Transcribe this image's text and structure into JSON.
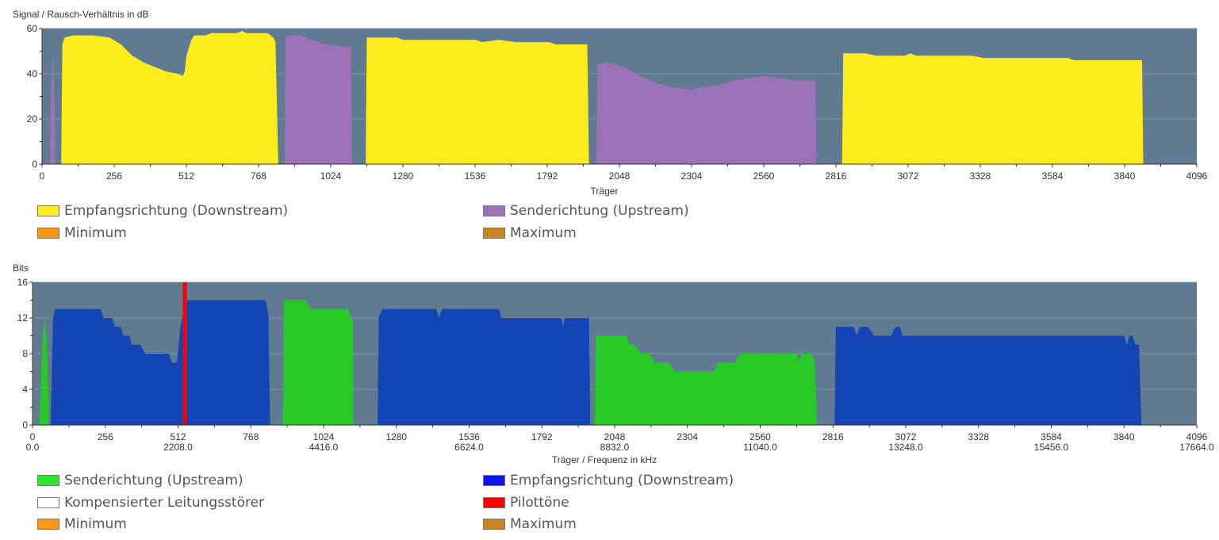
{
  "chart_data": [
    {
      "type": "area",
      "title": "Signal / Rausch-Verhältnis in dB",
      "xlabel": "Träger",
      "ylabel": "Signal / Rausch-Verhältnis in dB",
      "xlim": [
        0,
        4096
      ],
      "ylim": [
        0,
        60
      ],
      "x_ticks": [
        0,
        256,
        512,
        768,
        1024,
        1280,
        1536,
        1792,
        2048,
        2304,
        2560,
        2816,
        3072,
        3328,
        3584,
        3840,
        4096
      ],
      "y_ticks": [
        0,
        20,
        40,
        60
      ],
      "grid": true,
      "series": [
        {
          "name": "Senderichtung (Upstream)",
          "color": "#9b71b8",
          "segments": [
            [
              [
                28,
                0
              ],
              [
                32,
                35
              ],
              [
                40,
                49
              ],
              [
                44,
                30
              ],
              [
                48,
                0
              ]
            ],
            [
              [
                860,
                0
              ],
              [
                864,
                57
              ],
              [
                920,
                57
              ],
              [
                960,
                55
              ],
              [
                1000,
                53
              ],
              [
                1090,
                52
              ],
              [
                1096,
                52
              ],
              [
                1100,
                0
              ]
            ],
            [
              [
                1966,
                0
              ],
              [
                1970,
                44
              ],
              [
                2000,
                45
              ],
              [
                2040,
                44
              ],
              [
                2080,
                42
              ],
              [
                2120,
                39
              ],
              [
                2160,
                37
              ],
              [
                2200,
                35
              ],
              [
                2240,
                34
              ],
              [
                2300,
                33
              ],
              [
                2340,
                34
              ],
              [
                2400,
                35
              ],
              [
                2460,
                37
              ],
              [
                2500,
                38
              ],
              [
                2560,
                39
              ],
              [
                2620,
                38
              ],
              [
                2680,
                37
              ],
              [
                2744,
                37
              ],
              [
                2746,
                0
              ]
            ]
          ]
        },
        {
          "name": "Empfangsrichtung (Downstream)",
          "color": "#ffec1c",
          "segments": [
            [
              [
                68,
                0
              ],
              [
                72,
                53
              ],
              [
                80,
                56
              ],
              [
                110,
                57
              ],
              [
                180,
                57
              ],
              [
                240,
                56
              ],
              [
                280,
                53
              ],
              [
                320,
                48
              ],
              [
                360,
                45
              ],
              [
                400,
                43
              ],
              [
                440,
                41
              ],
              [
                480,
                40
              ],
              [
                500,
                39
              ],
              [
                506,
                41
              ],
              [
                512,
                48
              ],
              [
                530,
                55
              ],
              [
                540,
                57
              ],
              [
                580,
                57
              ],
              [
                600,
                58
              ],
              [
                690,
                58
              ],
              [
                710,
                59
              ],
              [
                724,
                58
              ],
              [
                800,
                58
              ],
              [
                820,
                56
              ],
              [
                828,
                54
              ],
              [
                838,
                0
              ]
            ],
            [
              [
                1148,
                0
              ],
              [
                1152,
                56
              ],
              [
                1260,
                56
              ],
              [
                1280,
                55
              ],
              [
                1540,
                55
              ],
              [
                1560,
                54
              ],
              [
                1620,
                55
              ],
              [
                1680,
                54
              ],
              [
                1800,
                54
              ],
              [
                1820,
                53
              ],
              [
                1934,
                53
              ],
              [
                1940,
                0
              ]
            ],
            [
              [
                2838,
                0
              ],
              [
                2842,
                49
              ],
              [
                2920,
                49
              ],
              [
                2960,
                48
              ],
              [
                3060,
                48
              ],
              [
                3080,
                49
              ],
              [
                3100,
                48
              ],
              [
                3300,
                48
              ],
              [
                3340,
                47
              ],
              [
                3500,
                47
              ],
              [
                3560,
                47
              ],
              [
                3640,
                47
              ],
              [
                3660,
                46
              ],
              [
                3902,
                46
              ],
              [
                3906,
                0
              ]
            ]
          ]
        },
        {
          "name": "Minimum",
          "color": "#ff9411",
          "segments": []
        },
        {
          "name": "Maximum",
          "color": "#c98322",
          "segments": []
        }
      ],
      "legend_position": "bottom"
    },
    {
      "type": "area",
      "title": "Bits",
      "xlabel": "Träger / Frequenz in kHz",
      "ylabel": "Bits",
      "xlim": [
        0,
        4096
      ],
      "ylim": [
        0,
        16
      ],
      "x_ticks": [
        0,
        256,
        512,
        768,
        1024,
        1280,
        1536,
        1792,
        2048,
        2304,
        2560,
        2816,
        3072,
        3328,
        3584,
        3840,
        4096
      ],
      "x_ticks_khz": [
        "0.0",
        "2208.0",
        "4416.0",
        "6624.0",
        "8832.0",
        "11040.0",
        "13248.0",
        "15456.0",
        "17664.0"
      ],
      "x_ticks_khz_at": [
        0,
        512,
        1024,
        1536,
        2048,
        2560,
        3072,
        3584,
        4096
      ],
      "y_ticks": [
        0,
        4,
        8,
        12,
        16
      ],
      "grid": true,
      "series": [
        {
          "name": "Senderichtung (Upstream)",
          "color": "#26c926",
          "segments": [
            [
              [
                24,
                0
              ],
              [
                36,
                10
              ],
              [
                44,
                12
              ],
              [
                52,
                8
              ],
              [
                58,
                0
              ]
            ],
            [
              [
                880,
                0
              ],
              [
                884,
                14
              ],
              [
                960,
                14
              ],
              [
                980,
                13
              ],
              [
                1110,
                13
              ],
              [
                1120,
                12
              ],
              [
                1126,
                12
              ],
              [
                1130,
                0
              ]
            ],
            [
              [
                1978,
                0
              ],
              [
                1982,
                10
              ],
              [
                2090,
                10
              ],
              [
                2100,
                9
              ],
              [
                2120,
                9
              ],
              [
                2140,
                8
              ],
              [
                2170,
                8
              ],
              [
                2190,
                7
              ],
              [
                2240,
                7
              ],
              [
                2260,
                6
              ],
              [
                2400,
                6
              ],
              [
                2410,
                7
              ],
              [
                2470,
                7
              ],
              [
                2490,
                8
              ],
              [
                2690,
                8
              ],
              [
                2696,
                7
              ],
              [
                2704,
                8
              ],
              [
                2740,
                8
              ],
              [
                2752,
                7
              ],
              [
                2760,
                0
              ]
            ]
          ]
        },
        {
          "name": "Empfangsrichtung (Downstream)",
          "color": "#1345b4",
          "segments": [
            [
              [
                64,
                0
              ],
              [
                72,
                12
              ],
              [
                80,
                13
              ],
              [
                240,
                13
              ],
              [
                250,
                12
              ],
              [
                280,
                12
              ],
              [
                290,
                11
              ],
              [
                310,
                11
              ],
              [
                320,
                10
              ],
              [
                340,
                10
              ],
              [
                350,
                9
              ],
              [
                380,
                9
              ],
              [
                396,
                8
              ],
              [
                480,
                8
              ],
              [
                490,
                7
              ],
              [
                508,
                7
              ],
              [
                520,
                11
              ],
              [
                540,
                14
              ],
              [
                620,
                14
              ],
              [
                820,
                14
              ],
              [
                826,
                13
              ],
              [
                830,
                12
              ],
              [
                836,
                0
              ]
            ],
            [
              [
                1214,
                0
              ],
              [
                1218,
                12
              ],
              [
                1230,
                13
              ],
              [
                1420,
                13
              ],
              [
                1430,
                12
              ],
              [
                1440,
                13
              ],
              [
                1640,
                13
              ],
              [
                1650,
                12
              ],
              [
                1860,
                12
              ],
              [
                1866,
                11
              ],
              [
                1872,
                12
              ],
              [
                1958,
                12
              ],
              [
                1962,
                0
              ]
            ],
            [
              [
                2822,
                0
              ],
              [
                2826,
                11
              ],
              [
                2890,
                11
              ],
              [
                2900,
                10
              ],
              [
                2910,
                11
              ],
              [
                2940,
                11
              ],
              [
                2960,
                10
              ],
              [
                3020,
                10
              ],
              [
                3036,
                11
              ],
              [
                3052,
                11
              ],
              [
                3060,
                10
              ],
              [
                3110,
                10
              ],
              [
                3160,
                10
              ],
              [
                3840,
                10
              ],
              [
                3850,
                9
              ],
              [
                3860,
                10
              ],
              [
                3870,
                10
              ],
              [
                3880,
                9
              ],
              [
                3893,
                9
              ],
              [
                3901,
                0
              ]
            ]
          ]
        },
        {
          "name": "Kompensierter Leitungsstörer",
          "color": "#ffffff",
          "segments": []
        },
        {
          "name": "Pilottöne",
          "color": "#ff0000",
          "markers": [
            536
          ]
        },
        {
          "name": "Minimum",
          "color": "#ff9411",
          "segments": []
        },
        {
          "name": "Maximum",
          "color": "#c98322",
          "segments": []
        }
      ],
      "legend_position": "bottom"
    }
  ],
  "colors": {
    "plot_background": "#607a91",
    "grid": "#7d94a8"
  }
}
